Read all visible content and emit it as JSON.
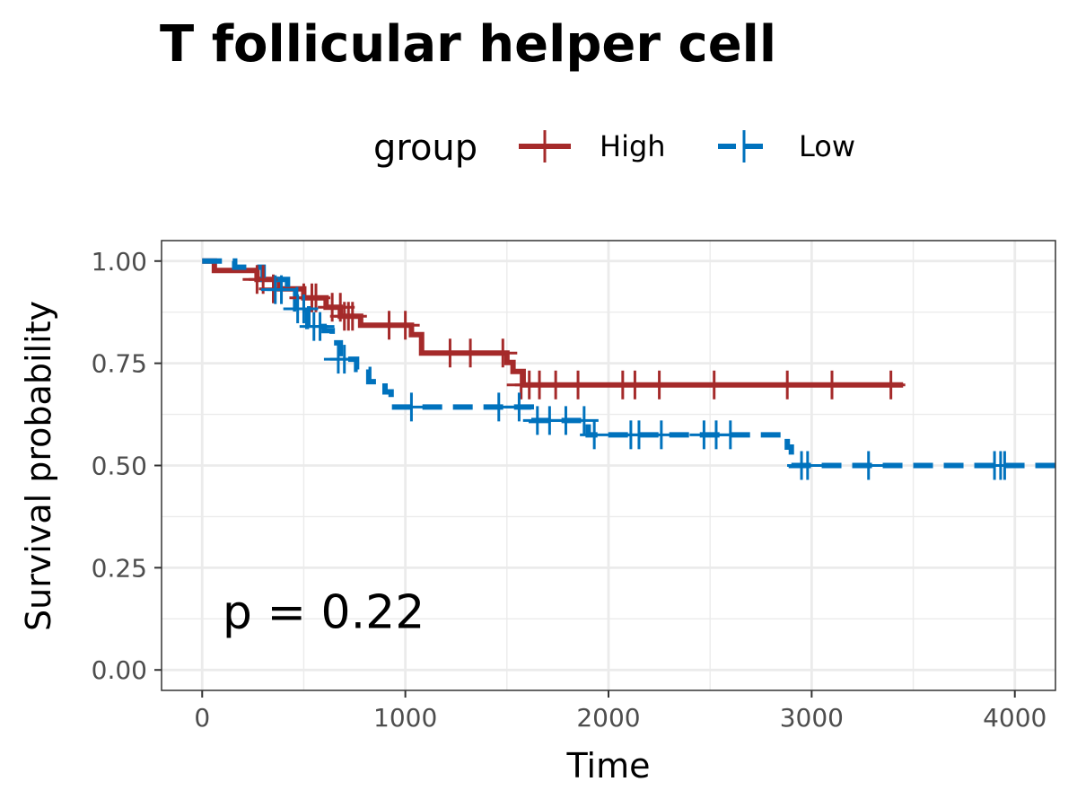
{
  "chart_data": {
    "type": "line",
    "title": "T follicular helper cell",
    "xlabel": "Time",
    "ylabel": "Survival probability",
    "xlim": [
      -200,
      4200
    ],
    "ylim": [
      -0.05,
      1.05
    ],
    "x_ticks": [
      0,
      1000,
      2000,
      3000,
      4000
    ],
    "y_ticks": [
      0.0,
      0.25,
      0.5,
      0.75,
      1.0
    ],
    "x_tick_labels": [
      "0",
      "1000",
      "2000",
      "3000",
      "4000"
    ],
    "y_tick_labels": [
      "0.00",
      "0.25",
      "0.50",
      "0.75",
      "1.00"
    ],
    "grid": true,
    "legend": {
      "title": "group",
      "position": "top"
    },
    "annotation": "p = 0.22",
    "annotation_pos": [
      100,
      0.19
    ],
    "series": [
      {
        "name": "High",
        "color": "#A52A2A",
        "dash": "solid",
        "steps": [
          [
            0,
            1.0
          ],
          [
            60,
            0.977
          ],
          [
            270,
            0.955
          ],
          [
            380,
            0.932
          ],
          [
            500,
            0.91
          ],
          [
            610,
            0.887
          ],
          [
            680,
            0.865
          ],
          [
            780,
            0.843
          ],
          [
            1030,
            0.82
          ],
          [
            1080,
            0.775
          ],
          [
            1500,
            0.752
          ],
          [
            1530,
            0.73
          ],
          [
            1580,
            0.697
          ],
          [
            3450,
            0.697
          ]
        ],
        "censors": [
          [
            270,
            0.955
          ],
          [
            300,
            0.955
          ],
          [
            350,
            0.932
          ],
          [
            500,
            0.91
          ],
          [
            540,
            0.91
          ],
          [
            560,
            0.91
          ],
          [
            640,
            0.887
          ],
          [
            680,
            0.887
          ],
          [
            700,
            0.865
          ],
          [
            720,
            0.865
          ],
          [
            740,
            0.865
          ],
          [
            920,
            0.843
          ],
          [
            1000,
            0.843
          ],
          [
            1220,
            0.775
          ],
          [
            1320,
            0.775
          ],
          [
            1480,
            0.775
          ],
          [
            1570,
            0.697
          ],
          [
            1610,
            0.697
          ],
          [
            1660,
            0.697
          ],
          [
            1740,
            0.697
          ],
          [
            1850,
            0.697
          ],
          [
            2070,
            0.697
          ],
          [
            2130,
            0.697
          ],
          [
            2250,
            0.697
          ],
          [
            2520,
            0.697
          ],
          [
            2880,
            0.697
          ],
          [
            3100,
            0.697
          ],
          [
            3390,
            0.697
          ]
        ]
      },
      {
        "name": "Low",
        "color": "#0072BD",
        "dash": "dashed",
        "steps": [
          [
            0,
            1.0
          ],
          [
            160,
            0.985
          ],
          [
            300,
            0.955
          ],
          [
            420,
            0.93
          ],
          [
            460,
            0.883
          ],
          [
            520,
            0.84
          ],
          [
            600,
            0.83
          ],
          [
            640,
            0.8
          ],
          [
            680,
            0.76
          ],
          [
            760,
            0.735
          ],
          [
            820,
            0.705
          ],
          [
            900,
            0.68
          ],
          [
            930,
            0.643
          ],
          [
            1620,
            0.61
          ],
          [
            1900,
            0.575
          ],
          [
            2880,
            0.545
          ],
          [
            2900,
            0.5
          ],
          [
            4200,
            0.5
          ]
        ],
        "censors": [
          [
            360,
            0.93
          ],
          [
            390,
            0.93
          ],
          [
            470,
            0.883
          ],
          [
            500,
            0.883
          ],
          [
            550,
            0.84
          ],
          [
            580,
            0.84
          ],
          [
            670,
            0.76
          ],
          [
            700,
            0.76
          ],
          [
            1030,
            0.643
          ],
          [
            1460,
            0.643
          ],
          [
            1560,
            0.643
          ],
          [
            1650,
            0.61
          ],
          [
            1710,
            0.61
          ],
          [
            1790,
            0.61
          ],
          [
            1880,
            0.61
          ],
          [
            1930,
            0.575
          ],
          [
            2110,
            0.575
          ],
          [
            2150,
            0.575
          ],
          [
            2260,
            0.575
          ],
          [
            2470,
            0.575
          ],
          [
            2530,
            0.575
          ],
          [
            2600,
            0.575
          ],
          [
            2950,
            0.5
          ],
          [
            2980,
            0.5
          ],
          [
            3280,
            0.5
          ],
          [
            3900,
            0.5
          ],
          [
            3930,
            0.5
          ],
          [
            3950,
            0.5
          ]
        ]
      }
    ]
  }
}
